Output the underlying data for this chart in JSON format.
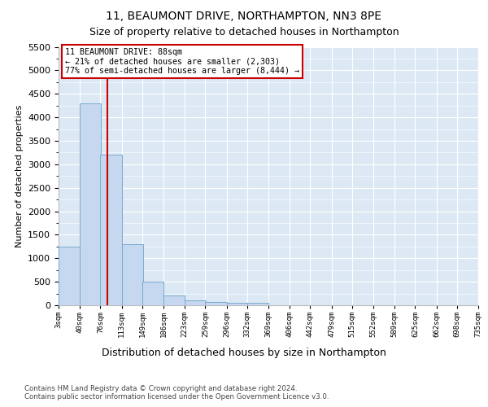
{
  "title1": "11, BEAUMONT DRIVE, NORTHAMPTON, NN3 8PE",
  "title2": "Size of property relative to detached houses in Northampton",
  "xlabel": "Distribution of detached houses by size in Northampton",
  "ylabel": "Number of detached properties",
  "footnote": "Contains HM Land Registry data © Crown copyright and database right 2024.\nContains public sector information licensed under the Open Government Licence v3.0.",
  "property_label": "11 BEAUMONT DRIVE: 88sqm",
  "annotation_line1": "← 21% of detached houses are smaller (2,303)",
  "annotation_line2": "77% of semi-detached houses are larger (8,444) →",
  "bin_edges": [
    3,
    40,
    76,
    113,
    149,
    186,
    223,
    259,
    296,
    332,
    369,
    406,
    442,
    479,
    515,
    552,
    589,
    625,
    662,
    698,
    735
  ],
  "bin_labels": [
    "3sqm",
    "40sqm",
    "76sqm",
    "113sqm",
    "149sqm",
    "186sqm",
    "223sqm",
    "259sqm",
    "296sqm",
    "332sqm",
    "369sqm",
    "406sqm",
    "442sqm",
    "479sqm",
    "515sqm",
    "552sqm",
    "589sqm",
    "625sqm",
    "662sqm",
    "698sqm",
    "735sqm"
  ],
  "bar_heights": [
    1250,
    4300,
    3200,
    1300,
    500,
    200,
    100,
    75,
    55,
    50,
    0,
    0,
    0,
    0,
    0,
    0,
    0,
    0,
    0,
    0
  ],
  "bar_color": "#c5d8ef",
  "bar_edge_color": "#7aaace",
  "vline_x": 88,
  "vline_color": "#cc0000",
  "ylim": [
    0,
    5500
  ],
  "yticks": [
    0,
    500,
    1000,
    1500,
    2000,
    2500,
    3000,
    3500,
    4000,
    4500,
    5000,
    5500
  ],
  "bg_color": "#dce9f5",
  "annotation_box_color": "#cc0000",
  "title1_fontsize": 10,
  "title2_fontsize": 9
}
